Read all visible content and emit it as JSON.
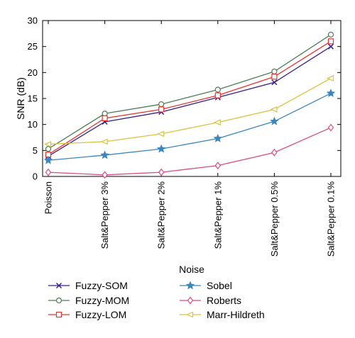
{
  "chart_data": {
    "type": "line",
    "xlabel": "Noise",
    "ylabel": "SNR (dB)",
    "categories": [
      "Poisson",
      "Salt&Pepper 3%",
      "Salt&Pepper 2%",
      "Salt&Pepper 1%",
      "Salt&Pepper 0.5%",
      "Salt&Pepper 0.1%"
    ],
    "ylim": [
      0,
      30
    ],
    "yticks": [
      0,
      5,
      10,
      15,
      20,
      25,
      30
    ],
    "grid": false,
    "legend_position": "bottom",
    "series": [
      {
        "name": "Fuzzy-SOM",
        "color": "#3b1e8c",
        "marker": "x",
        "values": [
          3.9,
          10.5,
          12.4,
          15.2,
          18.1,
          25.0
        ]
      },
      {
        "name": "Fuzzy-MOM",
        "color": "#4e7d54",
        "marker": "circle",
        "values": [
          5.3,
          12.1,
          13.9,
          16.7,
          20.2,
          27.3
        ]
      },
      {
        "name": "Fuzzy-LOM",
        "color": "#e8322a",
        "marker": "square",
        "values": [
          4.2,
          11.2,
          12.9,
          15.6,
          19.2,
          26.0
        ]
      },
      {
        "name": "Sobel",
        "color": "#3a86c1",
        "marker": "star",
        "values": [
          3.1,
          4.1,
          5.3,
          7.3,
          10.6,
          16.0
        ]
      },
      {
        "name": "Roberts",
        "color": "#d94c85",
        "marker": "diamond",
        "values": [
          0.8,
          0.3,
          0.8,
          2.1,
          4.6,
          9.4
        ]
      },
      {
        "name": "Marr-Hildreth",
        "color": "#dcc23d",
        "marker": "triangle-left",
        "values": [
          6.2,
          6.7,
          8.2,
          10.4,
          12.9,
          18.9
        ]
      }
    ]
  }
}
